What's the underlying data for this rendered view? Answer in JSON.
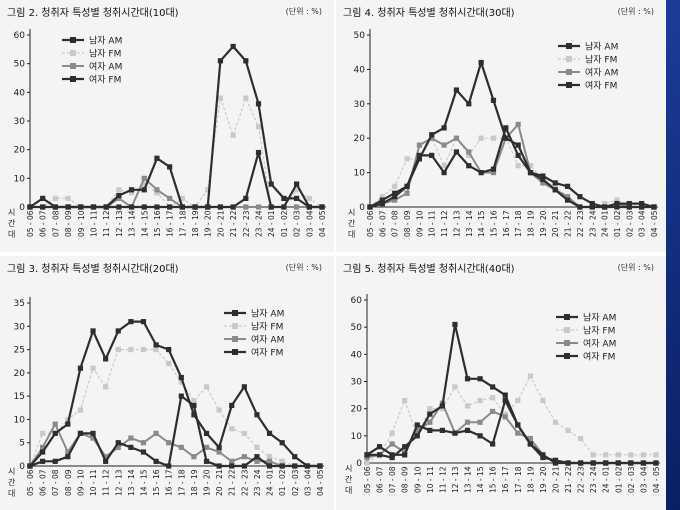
{
  "colors": {
    "background": "#f4f4f4",
    "dark": "#2e2e2e",
    "mid": "#8a8a8a",
    "light": "#c9c9c9",
    "stripe": "#1b3c99"
  },
  "chart_data": [
    {
      "type": "line",
      "title": "그림 2. 청취자 특성별 청취시간대(10대)",
      "unit": "(단위 : %)",
      "xlabel": "시간대",
      "categories": [
        "05-06",
        "06-07",
        "07-08",
        "08-09",
        "09-10",
        "10-11",
        "11-12",
        "12-13",
        "13-14",
        "14-15",
        "15-16",
        "16-17",
        "17-18",
        "18-19",
        "19-20",
        "20-21",
        "21-22",
        "22-23",
        "23-24",
        "24-01",
        "01-02",
        "02-03",
        "03-04",
        "04-05"
      ],
      "ylim": [
        0,
        60
      ],
      "yticks": [
        0,
        10,
        20,
        30,
        40,
        50,
        60
      ],
      "series": [
        {
          "name": "남자 AM",
          "style": "dark",
          "values": [
            0,
            3,
            0,
            0,
            0,
            0,
            0,
            0,
            0,
            0,
            0,
            0,
            0,
            0,
            0,
            0,
            0,
            3,
            19,
            0,
            0,
            8,
            0,
            0
          ]
        },
        {
          "name": "남자 FM",
          "style": "light",
          "values": [
            0,
            0,
            3,
            3,
            0,
            0,
            0,
            6,
            5,
            8,
            5,
            0,
            3,
            0,
            6,
            38,
            25,
            38,
            28,
            0,
            0,
            6,
            3,
            0
          ]
        },
        {
          "name": "여자 AM",
          "style": "mid",
          "values": [
            0,
            0,
            0,
            0,
            0,
            0,
            0,
            3,
            0,
            10,
            6,
            3,
            0,
            0,
            0,
            0,
            0,
            0,
            0,
            0,
            0,
            0,
            0,
            0
          ]
        },
        {
          "name": "여자 FM",
          "style": "dark",
          "values": [
            0,
            0,
            0,
            0,
            0,
            0,
            0,
            4,
            6,
            6,
            17,
            14,
            0,
            0,
            0,
            51,
            56,
            51,
            36,
            8,
            3,
            3,
            0,
            0
          ]
        }
      ]
    },
    {
      "type": "line",
      "title": "그림 4. 청취자 특성별 청취시간대(30대)",
      "unit": "(단위 : %)",
      "xlabel": "시간대",
      "categories": [
        "05-06",
        "06-07",
        "07-08",
        "08-09",
        "09-10",
        "10-11",
        "11-12",
        "12-13",
        "13-14",
        "14-15",
        "15-16",
        "16-17",
        "17-18",
        "18-19",
        "19-20",
        "20-21",
        "21-22",
        "22-23",
        "23-24",
        "24-01",
        "01-02",
        "02-03",
        "03-04",
        "04-05"
      ],
      "ylim": [
        0,
        50
      ],
      "yticks": [
        0,
        10,
        20,
        30,
        40,
        50
      ],
      "series": [
        {
          "name": "남자 AM",
          "style": "dark",
          "values": [
            0,
            2,
            4,
            6,
            15,
            15,
            10,
            16,
            12,
            10,
            11,
            23,
            15,
            10,
            8,
            5,
            2,
            0,
            0,
            0,
            0,
            0,
            0,
            0
          ]
        },
        {
          "name": "남자 FM",
          "style": "light",
          "values": [
            0,
            3,
            6,
            14,
            14,
            20,
            12,
            20,
            15,
            20,
            20,
            20,
            12,
            12,
            8,
            6,
            3,
            0,
            0,
            1,
            2,
            0,
            0,
            0
          ]
        },
        {
          "name": "여자 AM",
          "style": "mid",
          "values": [
            0,
            1,
            2,
            4,
            18,
            20,
            18,
            20,
            16,
            10,
            10,
            20,
            24,
            10,
            7,
            5,
            3,
            0,
            0,
            0,
            1,
            0,
            0,
            0
          ]
        },
        {
          "name": "여자 FM",
          "style": "dark",
          "values": [
            0,
            1,
            3,
            6,
            14,
            21,
            23,
            34,
            30,
            42,
            31,
            20,
            18,
            10,
            9,
            7,
            6,
            3,
            1,
            0,
            1,
            1,
            1,
            0
          ]
        }
      ]
    },
    {
      "type": "line",
      "title": "그림 3. 청취자 특성별 청취시간대(20대)",
      "unit": "(단위 : %)",
      "xlabel": "시간대",
      "categories": [
        "05-06",
        "06-07",
        "07-08",
        "08-09",
        "09-10",
        "10-11",
        "11-12",
        "12-13",
        "13-14",
        "14-15",
        "15-16",
        "16-17",
        "17-18",
        "18-19",
        "19-20",
        "20-21",
        "21-22",
        "22-23",
        "23-24",
        "24-01",
        "01-02",
        "02-03",
        "03-04",
        "04-05"
      ],
      "ylim": [
        0,
        35
      ],
      "yticks": [
        0,
        5,
        10,
        15,
        20,
        25,
        30,
        35
      ],
      "series": [
        {
          "name": "남자 AM",
          "style": "dark",
          "values": [
            0,
            1,
            1,
            2,
            7,
            7,
            1,
            5,
            4,
            3,
            1,
            0,
            15,
            13,
            1,
            0,
            0,
            0,
            2,
            0,
            0,
            0,
            0,
            0
          ]
        },
        {
          "name": "남자 FM",
          "style": "light",
          "values": [
            0,
            7,
            7,
            10,
            12,
            21,
            17,
            25,
            25,
            25,
            25,
            22,
            18,
            14,
            17,
            12,
            8,
            7,
            4,
            2,
            1,
            0,
            0,
            0
          ]
        },
        {
          "name": "여자 AM",
          "style": "mid",
          "values": [
            0,
            4,
            9,
            3,
            7,
            6,
            2,
            4,
            6,
            5,
            7,
            5,
            4,
            2,
            4,
            3,
            1,
            2,
            1,
            1,
            0,
            0,
            0,
            0
          ]
        },
        {
          "name": "여자 FM",
          "style": "dark",
          "values": [
            0,
            3,
            7,
            9,
            21,
            29,
            23,
            29,
            31,
            31,
            26,
            25,
            19,
            11,
            7,
            4,
            13,
            17,
            11,
            7,
            5,
            2,
            0,
            0
          ]
        }
      ]
    },
    {
      "type": "line",
      "title": "그림 5. 청취자 특성별 청취시간대(40대)",
      "unit": "(단위 : %)",
      "xlabel": "시간대",
      "categories": [
        "05-06",
        "06-07",
        "07-08",
        "08-09",
        "09-10",
        "10-11",
        "11-12",
        "12-13",
        "13-14",
        "14-15",
        "15-16",
        "16-17",
        "17-18",
        "18-19",
        "19-20",
        "20-21",
        "21-22",
        "22-23",
        "23-24",
        "24-01",
        "01-02",
        "02-03",
        "03-04",
        "04-05"
      ],
      "ylim": [
        0,
        60
      ],
      "yticks": [
        0,
        10,
        20,
        30,
        40,
        50,
        60
      ],
      "series": [
        {
          "name": "남자 AM",
          "style": "dark",
          "values": [
            3,
            6,
            3,
            3,
            14,
            12,
            12,
            11,
            12,
            10,
            7,
            23,
            14,
            7,
            3,
            0,
            0,
            0,
            0,
            0,
            0,
            0,
            0,
            0
          ]
        },
        {
          "name": "남자 FM",
          "style": "light",
          "values": [
            0,
            3,
            11,
            23,
            10,
            20,
            20,
            28,
            21,
            23,
            24,
            18,
            23,
            32,
            23,
            15,
            12,
            9,
            3,
            3,
            3,
            3,
            3,
            3
          ]
        },
        {
          "name": "여자 AM",
          "style": "mid",
          "values": [
            2,
            3,
            7,
            4,
            12,
            15,
            22,
            11,
            15,
            15,
            19,
            17,
            11,
            9,
            3,
            0,
            0,
            0,
            0,
            0,
            0,
            0,
            0,
            0
          ]
        },
        {
          "name": "여자 FM",
          "style": "dark",
          "values": [
            3,
            3,
            2,
            6,
            10,
            18,
            21,
            51,
            31,
            31,
            28,
            25,
            14,
            7,
            2,
            1,
            0,
            0,
            0,
            0,
            0,
            0,
            0,
            0
          ]
        }
      ]
    }
  ]
}
